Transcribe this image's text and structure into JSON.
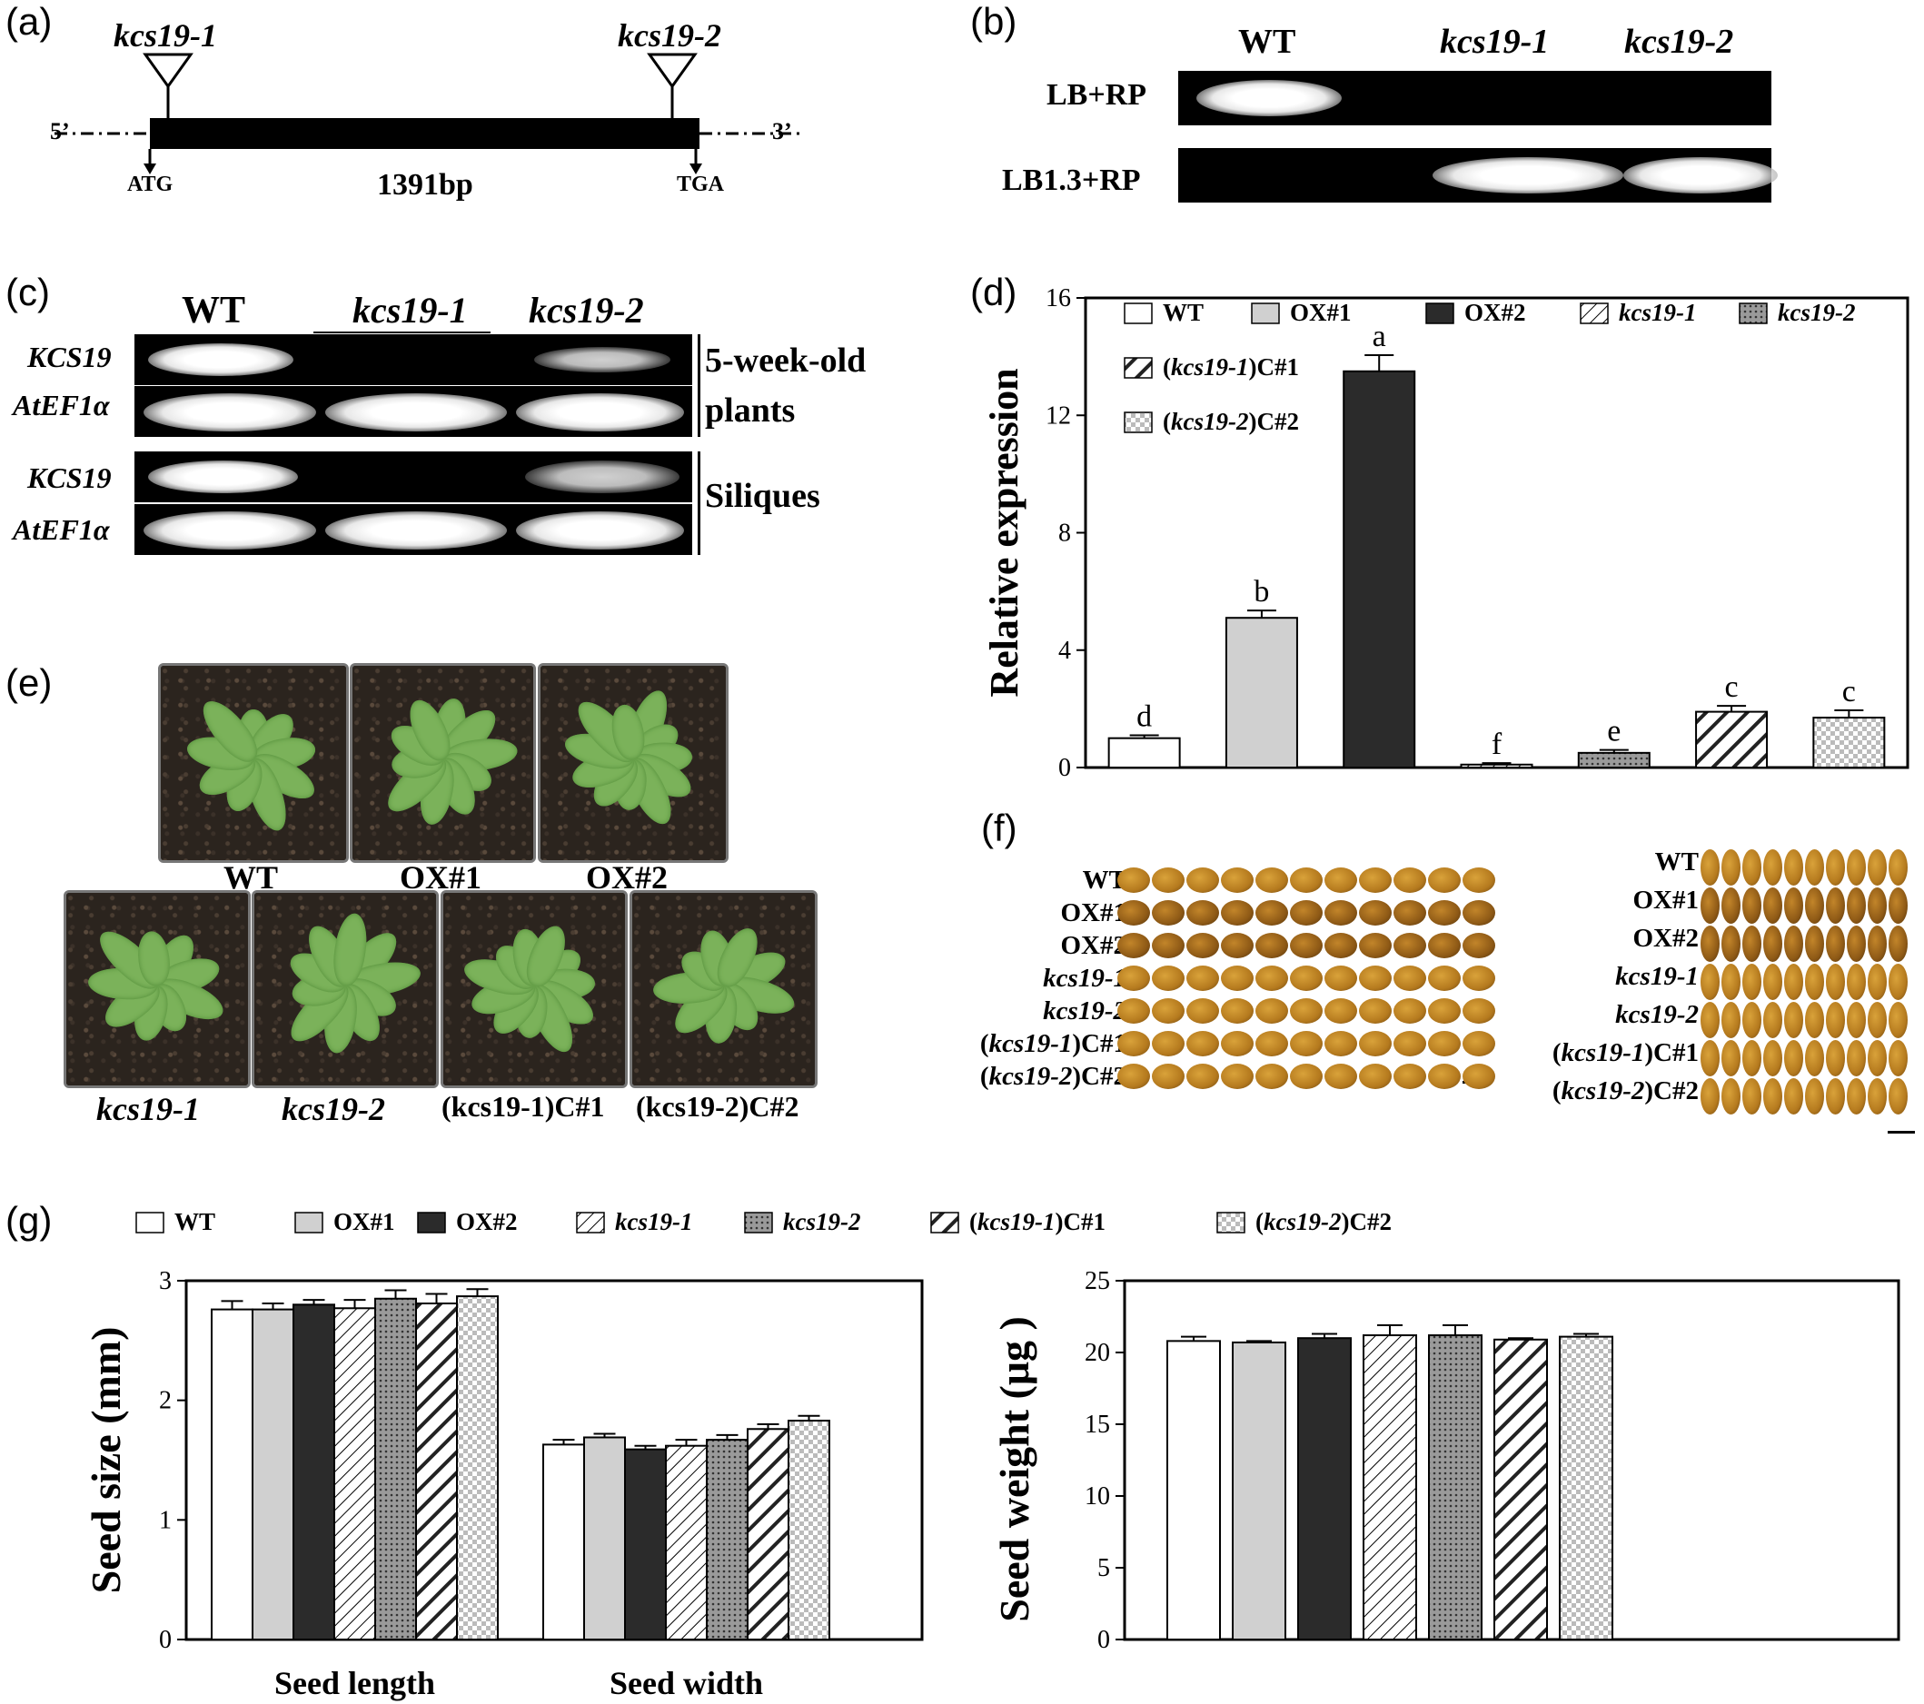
{
  "panel_a": {
    "label": "(a)",
    "insert1": "kcs19-1",
    "insert2": "kcs19-2",
    "five_prime": "5’",
    "three_prime": "3’",
    "start": "ATG",
    "stop": "TGA",
    "length": "1391bp"
  },
  "panel_b": {
    "label": "(b)",
    "lanes": [
      "WT",
      "kcs19-1",
      "kcs19-2"
    ],
    "rows": [
      "LB+RP",
      "LB1.3+RP"
    ]
  },
  "panel_c": {
    "label": "(c)",
    "lanes": [
      "WT",
      "kcs19-1",
      "kcs19-2"
    ],
    "rows": [
      "KCS19",
      "AtEF1α",
      "KCS19",
      "AtEF1α"
    ],
    "group1_line1": "5-week-old",
    "group1_line2": "plants",
    "group2": "Siliques"
  },
  "panel_d": {
    "label": "(d)",
    "legend": [
      "WT",
      "OX#1",
      "OX#2",
      "kcs19-1",
      "kcs19-2",
      "(kcs19-1)C#1",
      "(kcs19-2)C#2"
    ]
  },
  "panel_e": {
    "label": "(e)",
    "top_labels": [
      "WT",
      "OX#1",
      "OX#2"
    ],
    "bottom_labels": [
      "kcs19-1",
      "kcs19-2",
      "(kcs19-1)C#1",
      "(kcs19-2)C#2"
    ]
  },
  "panel_f": {
    "label": "(f)",
    "rows": [
      "WT",
      "OX#1",
      "OX#2",
      "kcs19-1",
      "kcs19-2",
      "(kcs19-1)C#1",
      "(kcs19-2)C#2"
    ]
  },
  "panel_g": {
    "label": "(g)",
    "legend": [
      "WT",
      "OX#1",
      "OX#2",
      "kcs19-1",
      "kcs19-2",
      "(kcs19-1)C#1",
      "(kcs19-2)C#2"
    ]
  },
  "chart_data": [
    {
      "type": "bar",
      "panel": "d",
      "categories": [
        "WT",
        "OX#1",
        "OX#2",
        "kcs19-1",
        "kcs19-2",
        "(kcs19-1)C#1",
        "(kcs19-2)C#2"
      ],
      "values": [
        1.0,
        5.1,
        13.5,
        0.1,
        0.5,
        1.9,
        1.7
      ],
      "errors": [
        0.1,
        0.25,
        0.55,
        0.05,
        0.1,
        0.2,
        0.25
      ],
      "letters": [
        "d",
        "b",
        "a",
        "f",
        "e",
        "c",
        "c"
      ],
      "ylabel": "Relative expression",
      "ylim": [
        0,
        16
      ],
      "yticks": [
        0,
        4,
        8,
        12,
        16
      ]
    },
    {
      "type": "bar",
      "panel": "g-size",
      "categories": [
        "Seed length",
        "Seed width"
      ],
      "series": [
        {
          "name": "WT",
          "values": [
            2.76,
            1.63
          ],
          "errors": [
            0.07,
            0.04
          ]
        },
        {
          "name": "OX#1",
          "values": [
            2.76,
            1.69
          ],
          "errors": [
            0.05,
            0.03
          ]
        },
        {
          "name": "OX#2",
          "values": [
            2.8,
            1.59
          ],
          "errors": [
            0.04,
            0.03
          ]
        },
        {
          "name": "kcs19-1",
          "values": [
            2.77,
            1.62
          ],
          "errors": [
            0.07,
            0.05
          ]
        },
        {
          "name": "kcs19-2",
          "values": [
            2.85,
            1.67
          ],
          "errors": [
            0.07,
            0.04
          ]
        },
        {
          "name": "(kcs19-1)C#1",
          "values": [
            2.81,
            1.76
          ],
          "errors": [
            0.08,
            0.04
          ]
        },
        {
          "name": "(kcs19-2)C#2",
          "values": [
            2.87,
            1.83
          ],
          "errors": [
            0.06,
            0.04
          ]
        }
      ],
      "ylabel": "Seed size (mm)",
      "ylim": [
        0,
        3
      ],
      "yticks": [
        0,
        1,
        2,
        3
      ]
    },
    {
      "type": "bar",
      "panel": "g-weight",
      "categories": [
        "WT",
        "OX#1",
        "OX#2",
        "kcs19-1",
        "kcs19-2",
        "(kcs19-1)C#1",
        "(kcs19-2)C#2"
      ],
      "values": [
        20.8,
        20.7,
        21.0,
        21.2,
        21.2,
        20.9,
        21.1
      ],
      "errors": [
        0.3,
        0.1,
        0.3,
        0.7,
        0.7,
        0.1,
        0.2
      ],
      "ylabel": "Seed weight (μg )",
      "ylim": [
        0,
        25
      ],
      "yticks": [
        0,
        5,
        10,
        15,
        20,
        25
      ]
    }
  ]
}
